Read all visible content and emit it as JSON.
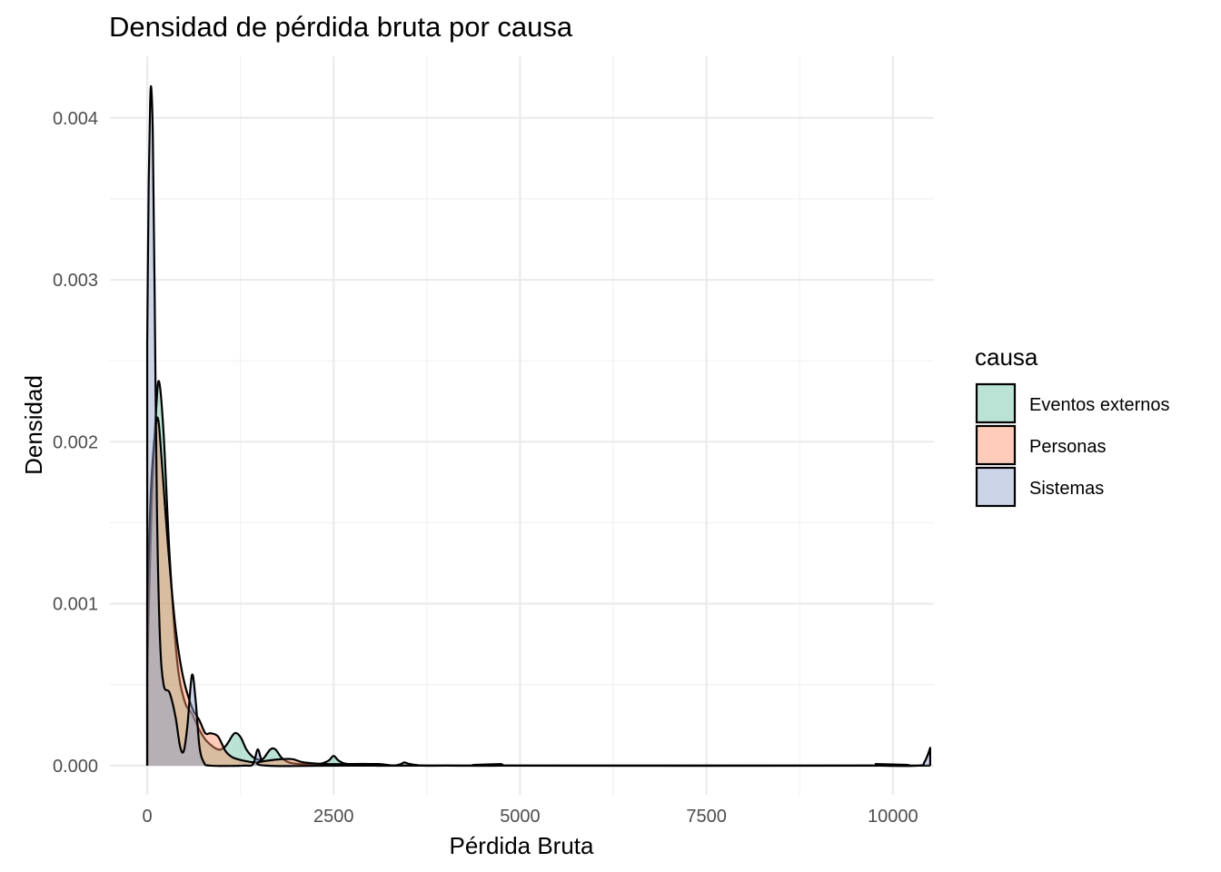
{
  "chart_data": {
    "type": "area",
    "title": "Densidad de pérdida bruta por causa",
    "xlabel": "Pérdida Bruta",
    "ylabel": "Densidad",
    "xlim": [
      -500,
      10550
    ],
    "ylim": [
      -0.00018,
      0.00438
    ],
    "x_ticks": [
      0,
      2500,
      5000,
      7500,
      10000
    ],
    "x_tick_labels": [
      "0",
      "2500",
      "5000",
      "7500",
      "10000"
    ],
    "y_ticks": [
      0,
      0.001,
      0.002,
      0.003,
      0.004
    ],
    "y_tick_labels": [
      "0.000",
      "0.001",
      "0.002",
      "0.003",
      "0.004"
    ],
    "grid": true,
    "legend": {
      "title": "causa",
      "position": "right"
    },
    "series": [
      {
        "name": "Eventos externos",
        "color": "#66c2a5",
        "points": [
          [
            0,
            0.00057
          ],
          [
            60,
            0.0016
          ],
          [
            120,
            0.0022
          ],
          [
            160,
            0.00237
          ],
          [
            220,
            0.00205
          ],
          [
            300,
            0.0013
          ],
          [
            400,
            0.00065
          ],
          [
            500,
            0.0004
          ],
          [
            600,
            0.00032
          ],
          [
            700,
            0.00022
          ],
          [
            800,
            0.00015
          ],
          [
            950,
            0.0001
          ],
          [
            1050,
            0.00012
          ],
          [
            1150,
            0.00019
          ],
          [
            1200,
            0.0002
          ],
          [
            1260,
            0.00017
          ],
          [
            1330,
            0.0001
          ],
          [
            1400,
            6e-05
          ],
          [
            1470,
            4e-05
          ],
          [
            1550,
            4e-05
          ],
          [
            1650,
            0.0001
          ],
          [
            1720,
            0.0001
          ],
          [
            1800,
            5e-05
          ],
          [
            1900,
            2e-05
          ],
          [
            2050,
            1e-05
          ],
          [
            2300,
            1e-05
          ],
          [
            2430,
            3e-05
          ],
          [
            2500,
            6e-05
          ],
          [
            2570,
            3e-05
          ],
          [
            2700,
            1e-05
          ],
          [
            3100,
            1e-05
          ],
          [
            3300,
            0.0
          ],
          [
            3400,
            1e-05
          ],
          [
            3450,
            2e-05
          ],
          [
            3520,
            1e-05
          ],
          [
            3700,
            0.0
          ],
          [
            4000,
            0.0
          ],
          [
            4700,
            0.0
          ],
          [
            4750,
            1e-05
          ],
          [
            4800,
            0.0
          ],
          [
            10500,
            0.0
          ]
        ]
      },
      {
        "name": "Personas",
        "color": "#fc8d62",
        "points": [
          [
            0,
            0.00102
          ],
          [
            50,
            0.0017
          ],
          [
            110,
            0.00208
          ],
          [
            150,
            0.00213
          ],
          [
            200,
            0.00185
          ],
          [
            280,
            0.00135
          ],
          [
            380,
            0.00085
          ],
          [
            480,
            0.00055
          ],
          [
            600,
            0.00036
          ],
          [
            700,
            0.00028
          ],
          [
            780,
            0.0002
          ],
          [
            850,
            0.0002
          ],
          [
            950,
            0.00018
          ],
          [
            1050,
            9e-05
          ],
          [
            1150,
            5e-05
          ],
          [
            1300,
            3e-05
          ],
          [
            1450,
            2e-05
          ],
          [
            1600,
            3e-05
          ],
          [
            1800,
            4e-05
          ],
          [
            1950,
            4e-05
          ],
          [
            2100,
            2e-05
          ],
          [
            2400,
            1e-05
          ],
          [
            2700,
            1e-05
          ],
          [
            3000,
            1e-05
          ],
          [
            3300,
            0.0
          ],
          [
            3700,
            0.0
          ],
          [
            10500,
            0.0
          ]
        ]
      },
      {
        "name": "Sistemas",
        "color": "#8da0cb",
        "points": [
          [
            0,
            0.0026
          ],
          [
            20,
            0.0036
          ],
          [
            40,
            0.0041
          ],
          [
            55,
            0.00418
          ],
          [
            75,
            0.0039
          ],
          [
            100,
            0.0029
          ],
          [
            130,
            0.0016
          ],
          [
            170,
            0.0008
          ],
          [
            220,
            0.0005
          ],
          [
            300,
            0.00045
          ],
          [
            380,
            0.0003
          ],
          [
            440,
            0.00012
          ],
          [
            490,
            9e-05
          ],
          [
            540,
            0.00025
          ],
          [
            600,
            0.00056
          ],
          [
            650,
            0.0004
          ],
          [
            700,
            0.00012
          ],
          [
            760,
            2e-05
          ],
          [
            850,
            0.0
          ],
          [
            1300,
            0.0
          ],
          [
            1420,
            1e-05
          ],
          [
            1480,
            0.0001
          ],
          [
            1530,
            4e-05
          ],
          [
            1600,
            0.0
          ],
          [
            3000,
            0.0
          ],
          [
            9700,
            0.0
          ],
          [
            9770,
            1e-05
          ],
          [
            9850,
            0.0
          ],
          [
            10350,
            0.0
          ],
          [
            10420,
            2e-05
          ],
          [
            10470,
            7e-05
          ],
          [
            10500,
            0.00011
          ]
        ]
      }
    ]
  }
}
